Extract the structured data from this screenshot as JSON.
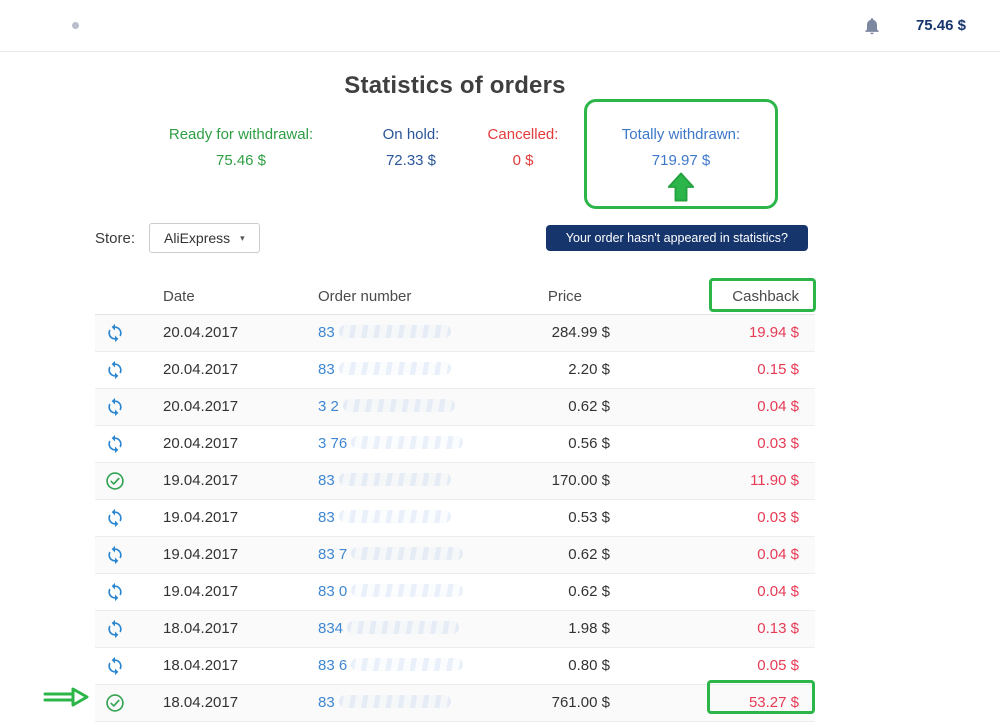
{
  "topbar": {
    "balance": "75.46 $"
  },
  "page": {
    "title": "Statistics of orders"
  },
  "stats": {
    "ready": {
      "label": "Ready for withdrawal:",
      "value": "75.46 $"
    },
    "on_hold": {
      "label": "On hold:",
      "value": "72.33 $"
    },
    "cancelled": {
      "label": "Cancelled:",
      "value": "0 $"
    },
    "withdrawn": {
      "label": "Totally withdrawn:",
      "value": "719.97 $"
    }
  },
  "filters": {
    "store_label": "Store:",
    "store_value": "AliExpress",
    "help_button": "Your order hasn't appeared in statistics?"
  },
  "table": {
    "headers": {
      "date": "Date",
      "order": "Order number",
      "price": "Price",
      "cashback": "Cashback"
    },
    "rows": [
      {
        "status": "processing",
        "date": "20.04.2017",
        "order": "83",
        "price": "284.99 $",
        "cashback": "19.94 $"
      },
      {
        "status": "processing",
        "date": "20.04.2017",
        "order": "83",
        "price": "2.20 $",
        "cashback": "0.15 $"
      },
      {
        "status": "processing",
        "date": "20.04.2017",
        "order": "3 2",
        "price": "0.62 $",
        "cashback": "0.04 $"
      },
      {
        "status": "processing",
        "date": "20.04.2017",
        "order": "3 76",
        "price": "0.56 $",
        "cashback": "0.03 $"
      },
      {
        "status": "completed",
        "date": "19.04.2017",
        "order": "83",
        "price": "170.00 $",
        "cashback": "11.90 $"
      },
      {
        "status": "processing",
        "date": "19.04.2017",
        "order": "83",
        "price": "0.53 $",
        "cashback": "0.03 $"
      },
      {
        "status": "processing",
        "date": "19.04.2017",
        "order": "83 7",
        "price": "0.62 $",
        "cashback": "0.04 $"
      },
      {
        "status": "processing",
        "date": "19.04.2017",
        "order": "83 0",
        "price": "0.62 $",
        "cashback": "0.04 $"
      },
      {
        "status": "processing",
        "date": "18.04.2017",
        "order": "834",
        "price": "1.98 $",
        "cashback": "0.13 $"
      },
      {
        "status": "processing",
        "date": "18.04.2017",
        "order": "83 6",
        "price": "0.80 $",
        "cashback": "0.05 $"
      },
      {
        "status": "completed",
        "date": "18.04.2017",
        "order": "83",
        "price": "761.00 $",
        "cashback": "53.27 $"
      }
    ]
  },
  "colors": {
    "accent_green": "#2cb64a",
    "link_blue": "#3f87d2",
    "cashback_red": "#e63b55",
    "navy": "#16356d",
    "green_text": "#2f9e44",
    "hold_blue": "#2a5699",
    "cancel_red": "#e23b3b",
    "withdrawn_blue": "#3d78c9"
  }
}
